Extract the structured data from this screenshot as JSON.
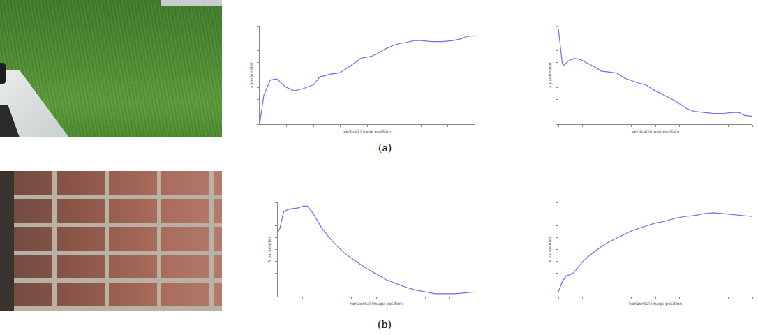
{
  "panel_labels": [
    "(a)",
    "(b)"
  ],
  "chart_data": [
    {
      "type": "line",
      "x_label": "vertical image position",
      "y_label": "λ parameter",
      "color": "#6f6ff0",
      "x": [
        0,
        2,
        5,
        8,
        12,
        16,
        20,
        25,
        28,
        33,
        37,
        40,
        44,
        47,
        52,
        55,
        58,
        62,
        65,
        68,
        72,
        75,
        80,
        85,
        90,
        94,
        96,
        100
      ],
      "values": [
        0,
        30,
        45,
        46,
        38,
        34,
        36,
        40,
        48,
        51,
        52,
        56,
        62,
        67,
        69,
        72,
        76,
        80,
        82,
        83,
        85,
        85,
        84,
        84,
        85,
        87,
        89,
        90
      ],
      "xlim": [
        0,
        100
      ],
      "ylim": [
        0,
        100
      ],
      "xticks": [
        0,
        12.5,
        25,
        37.5,
        50,
        62.5,
        75,
        87.5,
        100
      ],
      "yticks": [
        0,
        12.5,
        25,
        37.5,
        50,
        62.5,
        75,
        87.5,
        100
      ],
      "tick_labels": false,
      "grid": false
    },
    {
      "type": "line",
      "x_label": "vertical image position",
      "y_label": "λ parameter",
      "color": "#6f6ff0",
      "x": [
        0,
        1,
        2,
        3,
        5,
        8,
        11,
        15,
        19,
        22,
        26,
        30,
        34,
        37,
        41,
        45,
        49,
        52,
        56,
        60,
        63,
        66,
        70,
        75,
        80,
        85,
        90,
        93,
        96,
        100
      ],
      "values": [
        97,
        78,
        62,
        60,
        64,
        67,
        66,
        62,
        58,
        54,
        53,
        52,
        47,
        45,
        42,
        40,
        35,
        32,
        28,
        24,
        20,
        16,
        13,
        12,
        11,
        11,
        12,
        12,
        9,
        8
      ],
      "xlim": [
        0,
        100
      ],
      "ylim": [
        0,
        100
      ],
      "xticks": [
        0,
        12.5,
        25,
        37.5,
        50,
        62.5,
        75,
        87.5,
        100
      ],
      "yticks": [
        0,
        12.5,
        25,
        37.5,
        50,
        62.5,
        75,
        87.5,
        100
      ],
      "tick_labels": false,
      "grid": false
    },
    {
      "type": "line",
      "x_label": "horizontal image position",
      "y_label": "λ parameter",
      "color": "#6f6ff0",
      "x": [
        0,
        1,
        3,
        6,
        10,
        13,
        15,
        18,
        22,
        26,
        30,
        34,
        38,
        42,
        45,
        50,
        55,
        60,
        65,
        70,
        75,
        80,
        85,
        90,
        95,
        100
      ],
      "values": [
        68,
        72,
        90,
        93,
        94,
        96,
        96,
        88,
        74,
        63,
        54,
        46,
        40,
        34,
        30,
        24,
        18,
        14,
        10,
        7,
        5,
        3,
        3,
        3,
        4,
        5
      ],
      "xlim": [
        0,
        100
      ],
      "ylim": [
        0,
        100
      ],
      "xticks": [
        0,
        12.5,
        25,
        37.5,
        50,
        62.5,
        75,
        87.5,
        100
      ],
      "yticks": [
        0,
        12.5,
        25,
        37.5,
        50,
        62.5,
        75,
        87.5,
        100
      ],
      "tick_labels": false,
      "grid": false
    },
    {
      "type": "line",
      "x_label": "horizontal image position",
      "y_label": "λ parameter",
      "color": "#6f6ff0",
      "x": [
        0,
        2,
        4,
        7,
        9,
        12,
        15,
        19,
        22,
        26,
        30,
        34,
        38,
        42,
        45,
        50,
        55,
        60,
        65,
        70,
        75,
        80,
        85,
        90,
        95,
        100
      ],
      "values": [
        5,
        16,
        22,
        24,
        28,
        36,
        42,
        48,
        53,
        58,
        62,
        66,
        70,
        73,
        75,
        78,
        80,
        83,
        85,
        86,
        88,
        89,
        88,
        87,
        86,
        85
      ],
      "xlim": [
        0,
        100
      ],
      "ylim": [
        0,
        100
      ],
      "xticks": [
        0,
        12.5,
        25,
        37.5,
        50,
        62.5,
        75,
        87.5,
        100
      ],
      "yticks": [
        0,
        12.5,
        25,
        37.5,
        50,
        62.5,
        75,
        87.5,
        100
      ],
      "tick_labels": false,
      "grid": false
    }
  ]
}
